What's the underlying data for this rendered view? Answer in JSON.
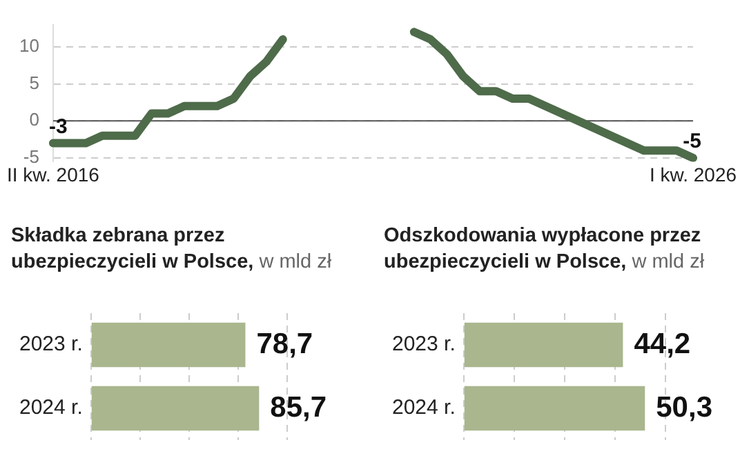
{
  "chart_data": [
    {
      "type": "line",
      "categories": [
        "II kw. 2016",
        null,
        null,
        null,
        null,
        null,
        null,
        null,
        null,
        null,
        null,
        null,
        null,
        null,
        null,
        null,
        null,
        null,
        null,
        null,
        null,
        null,
        null,
        null,
        null,
        null,
        null,
        null,
        null,
        null,
        null,
        null,
        null,
        null,
        null,
        null,
        null,
        null,
        null,
        "I kw. 2026"
      ],
      "series": [
        {
          "color": "#4e6b4a",
          "values": [
            -3,
            -3,
            -3,
            -2,
            -2,
            -2,
            1,
            1,
            2,
            2,
            2,
            3,
            6,
            8,
            11,
            null,
            null,
            null,
            null,
            null,
            null,
            null,
            null,
            null,
            null,
            null,
            null,
            null,
            null,
            null,
            null,
            null,
            null,
            null,
            null,
            null,
            null,
            null,
            null,
            null
          ],
          "value_labels": [
            "-3",
            null,
            null,
            null,
            null,
            null,
            null,
            null,
            null,
            null,
            null,
            null,
            null,
            null,
            null,
            null,
            null,
            null,
            null,
            null,
            null,
            null,
            null,
            null,
            null,
            null,
            null,
            null,
            null,
            null,
            null,
            null,
            null,
            null,
            null,
            null,
            null,
            null,
            null,
            null
          ]
        },
        {
          "color": "#4e6b4a",
          "values": [
            null,
            null,
            null,
            null,
            null,
            null,
            null,
            null,
            null,
            null,
            null,
            null,
            null,
            null,
            null,
            null,
            null,
            null,
            null,
            null,
            null,
            null,
            12,
            11,
            9,
            6,
            4,
            4,
            3,
            3,
            2,
            1,
            0,
            -1,
            -2,
            -3,
            -4,
            -4,
            -4,
            -5
          ],
          "value_labels": [
            null,
            null,
            null,
            null,
            null,
            null,
            null,
            null,
            null,
            null,
            null,
            null,
            null,
            null,
            null,
            null,
            null,
            null,
            null,
            null,
            null,
            null,
            null,
            null,
            null,
            null,
            null,
            null,
            null,
            null,
            null,
            null,
            null,
            null,
            null,
            null,
            null,
            null,
            null,
            "-5"
          ]
        }
      ],
      "ylim": [
        -5.5,
        13
      ],
      "yticks": [
        10,
        5,
        0,
        -5
      ],
      "grid": "y",
      "ref_lines": [
        {
          "axis": "y",
          "value": 0,
          "color": "#555555"
        }
      ]
    },
    {
      "type": "bar",
      "orientation": "horizontal",
      "title": "Składka zebrana przez ubezpieczycieli w Polsce,",
      "subtitle": "w mld zł",
      "categories": [
        "2023 r.",
        "2024 r."
      ],
      "series": [
        {
          "color": "#a9b68e",
          "values": [
            78.7,
            85.7
          ],
          "value_labels": [
            "78,7",
            "85,7"
          ]
        }
      ],
      "xlim": [
        0,
        100
      ],
      "xticks": [
        {
          "value": 0,
          "label": null
        },
        {
          "value": 25,
          "label": null
        },
        {
          "value": 50,
          "label": null
        },
        {
          "value": 75,
          "label": null
        },
        {
          "value": 100,
          "label": null
        }
      ],
      "grid": "x",
      "tick_labels": "y"
    },
    {
      "type": "bar",
      "orientation": "horizontal",
      "title": "Odszkodowania wypłacone przez ubezpieczycieli w Polsce,",
      "subtitle": "w mld zł",
      "categories": [
        "2023 r.",
        "2024 r."
      ],
      "series": [
        {
          "color": "#a9b68e",
          "values": [
            44.2,
            50.3
          ],
          "value_labels": [
            "44,2",
            "50,3"
          ]
        }
      ],
      "xlim": [
        0,
        56
      ],
      "xticks": [
        {
          "value": 0,
          "label": null
        },
        {
          "value": 14,
          "label": null
        },
        {
          "value": 28,
          "label": null
        },
        {
          "value": 42,
          "label": null
        },
        {
          "value": 56,
          "label": null
        }
      ],
      "grid": "x",
      "tick_labels": "y"
    }
  ]
}
